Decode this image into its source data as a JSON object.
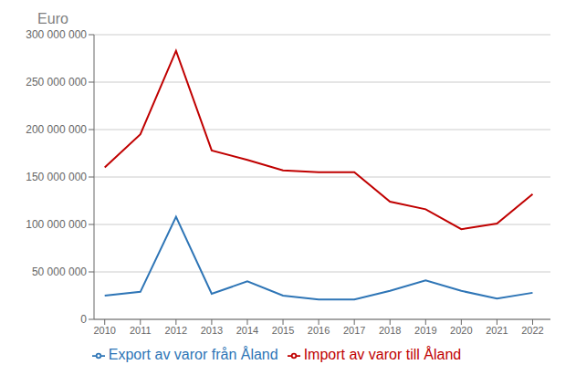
{
  "chart_data": {
    "type": "line",
    "ylabel": "Euro",
    "x": [
      2010,
      2011,
      2012,
      2013,
      2014,
      2015,
      2016,
      2017,
      2018,
      2019,
      2020,
      2021,
      2022
    ],
    "xlim": [
      2009.7,
      2022.5
    ],
    "xticks": [
      2010,
      2011,
      2012,
      2013,
      2014,
      2015,
      2016,
      2017,
      2018,
      2019,
      2020,
      2021,
      2022
    ],
    "ylim": [
      0,
      300000000
    ],
    "yticks": [
      0,
      {
        "value": 50000000,
        "label": "50 000 000"
      },
      {
        "value": 100000000,
        "label": "100 000 000"
      },
      {
        "value": 150000000,
        "label": "150 000 000"
      },
      {
        "value": 200000000,
        "label": "200 000 000"
      },
      {
        "value": 250000000,
        "label": "250 000 000"
      },
      {
        "value": 300000000,
        "label": "300 000 000"
      }
    ],
    "grid": "y",
    "legend": "bottom",
    "series": [
      {
        "name": "Export av varor från Åland",
        "color": "#2E75B6",
        "values": [
          25000000,
          29000000,
          108000000,
          27000000,
          40000000,
          25000000,
          21000000,
          21000000,
          30000000,
          41000000,
          30000000,
          22000000,
          28000000
        ]
      },
      {
        "name": "Import av varor till Åland",
        "color": "#C00000",
        "values": [
          160000000,
          195000000,
          283000000,
          178000000,
          168000000,
          157000000,
          155000000,
          155000000,
          124000000,
          116000000,
          95000000,
          101000000,
          132000000
        ]
      }
    ]
  }
}
